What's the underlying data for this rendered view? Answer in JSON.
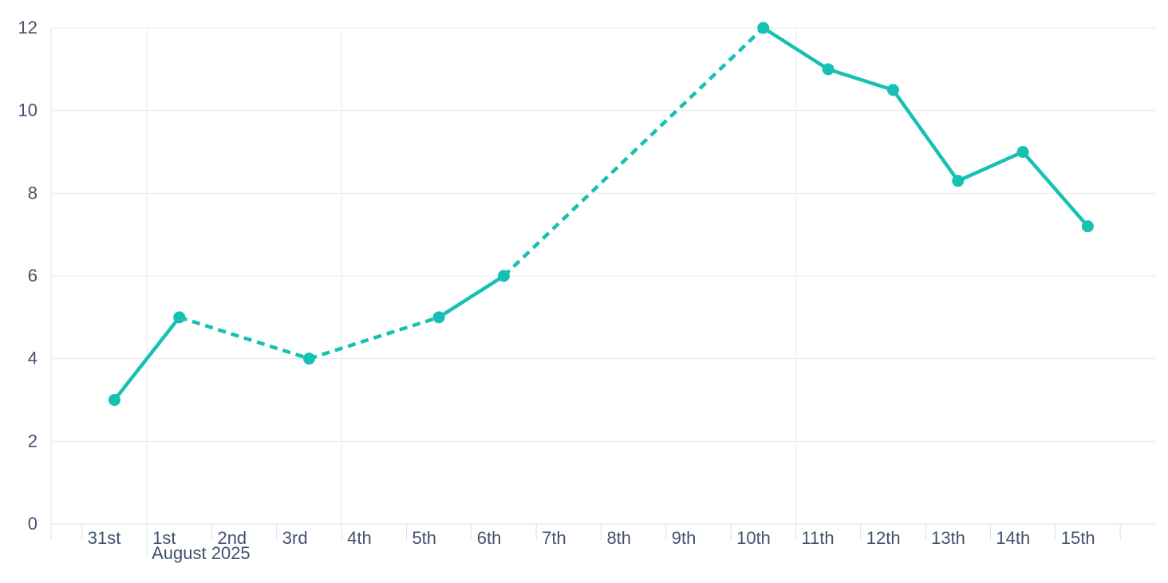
{
  "chart_data": {
    "type": "line",
    "title": "",
    "legend": "none",
    "grid": "on",
    "x_axis": {
      "categories": [
        "31st",
        "1st",
        "2nd",
        "3rd",
        "4th",
        "5th",
        "6th",
        "7th",
        "8th",
        "9th",
        "10th",
        "11th",
        "12th",
        "13th",
        "14th",
        "15th"
      ],
      "month_label": "August 2025",
      "month_label_at_index": 1,
      "vertical_gridlines_before_index": [
        1,
        4,
        11
      ]
    },
    "y_axis": {
      "min": 0,
      "max": 12,
      "ticks": [
        0,
        2,
        4,
        6,
        8,
        10,
        12
      ]
    },
    "series": [
      {
        "name": "daily-values",
        "color": "#16C1B3",
        "marker": "circle",
        "missing_data_style": "dashed",
        "values": [
          3,
          5,
          null,
          4,
          null,
          5,
          6,
          null,
          null,
          null,
          12,
          11,
          10.5,
          8.3,
          9,
          7.2
        ]
      }
    ],
    "colors": {
      "grid": "#E8EAF3",
      "axis": "#DCE0EC",
      "text": "#42526E",
      "background": "#FFFFFF"
    }
  }
}
